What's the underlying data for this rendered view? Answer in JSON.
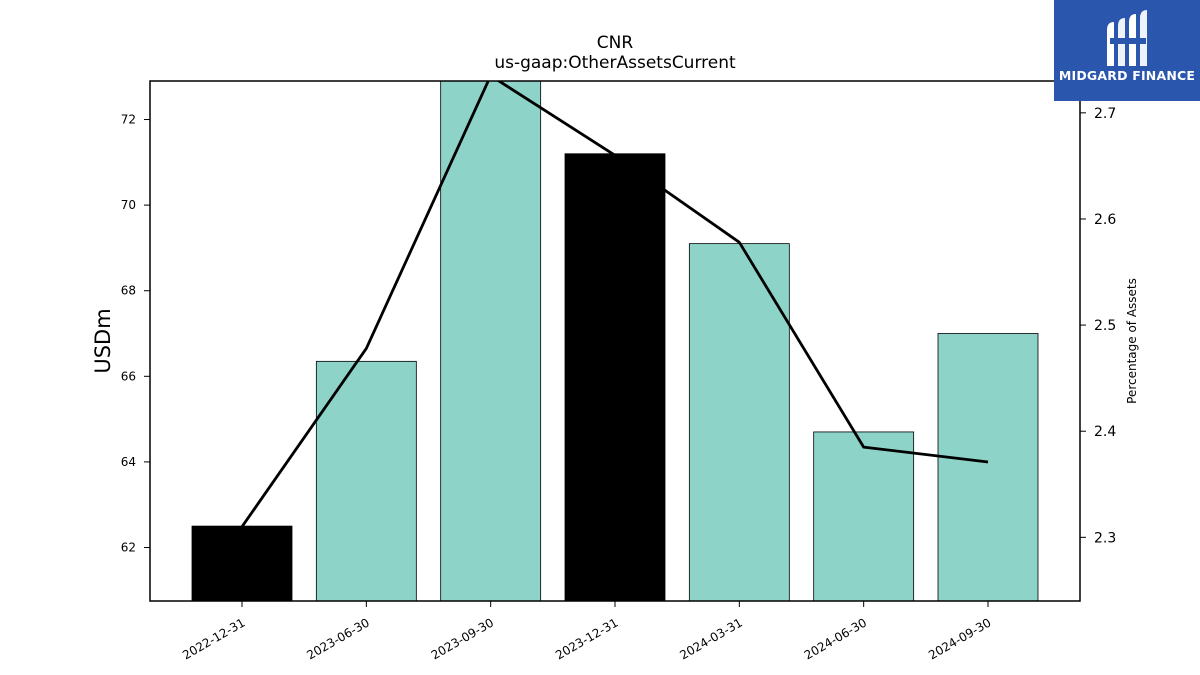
{
  "brand": {
    "name": "MIDGARD FINANCE",
    "logo_icon": "midgard-m-icon",
    "bg_color": "#2b56ad"
  },
  "chart_data": {
    "type": "bar",
    "title": "CNR",
    "subtitle": "us-gaap:OtherAssetsCurrent",
    "ylabel": "USDm",
    "y2label": "Percentage of Assets",
    "categories": [
      "2022-12-31",
      "2023-06-30",
      "2023-09-30",
      "2023-12-31",
      "2024-03-31",
      "2024-06-30",
      "2024-09-30"
    ],
    "series": [
      {
        "type": "bar",
        "axis": "left",
        "values": [
          62.5,
          66.35,
          73.0,
          71.2,
          69.1,
          64.7,
          67.0
        ],
        "colors": [
          "#000000",
          "#8dd3c7",
          "#8dd3c7",
          "#000000",
          "#8dd3c7",
          "#8dd3c7",
          "#8dd3c7"
        ]
      },
      {
        "type": "line",
        "axis": "right",
        "values": [
          2.31,
          2.478,
          2.735,
          2.66,
          2.578,
          2.385,
          2.371
        ],
        "color": "#000000"
      }
    ],
    "ylim": [
      60.75,
      72.9
    ],
    "y2lim": [
      2.24,
      2.73
    ],
    "yticks": [
      62,
      64,
      66,
      68,
      70,
      72
    ],
    "y2ticks": [
      2.3,
      2.4,
      2.5,
      2.6,
      2.7
    ],
    "grid": false
  }
}
